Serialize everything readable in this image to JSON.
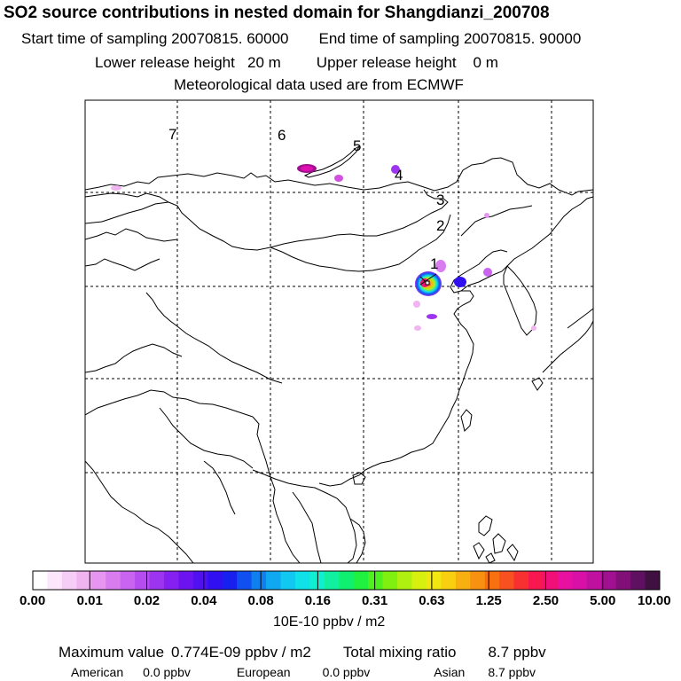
{
  "header": {
    "title": "SO2 source contributions in nested domain for Shangdianzi_200708",
    "start_label": "Start time of sampling 20070815. 60000",
    "end_label": "End time of sampling 20070815. 90000",
    "lower_label": "Lower release height   20 m",
    "upper_label": "Upper release height    0 m",
    "met_label": "Meteorological data used are from ECMWF"
  },
  "map": {
    "trajectory_labels": [
      "7",
      "6",
      "5",
      "4",
      "3",
      "2",
      "1"
    ],
    "colors": {
      "border": "#000000",
      "grid": "#000000"
    }
  },
  "colorbar": {
    "ticks": [
      "0.00",
      "0.01",
      "0.02",
      "0.04",
      "0.08",
      "0.16",
      "0.31",
      "0.63",
      "1.25",
      "2.50",
      "5.00",
      "10.00"
    ],
    "units": "10E-10 ppbv / m2",
    "colors": [
      "#ffffff",
      "#fbe6fb",
      "#f6cdf6",
      "#f0b4f0",
      "#e696f0",
      "#d87cf0",
      "#c864f0",
      "#b44cf0",
      "#9c34f0",
      "#8420f0",
      "#6c14f0",
      "#5010f0",
      "#3010f0",
      "#1820f0",
      "#1050f0",
      "#1080f0",
      "#10a8f0",
      "#10c8f0",
      "#10e0e8",
      "#10f0d0",
      "#10f0a0",
      "#10f070",
      "#20f040",
      "#50f020",
      "#80f010",
      "#b0f010",
      "#d8f010",
      "#f0e810",
      "#f8d010",
      "#f8b010",
      "#f89010",
      "#f87010",
      "#f85020",
      "#f83030",
      "#f81850",
      "#f01078",
      "#e810a0",
      "#d810a8",
      "#c010a0",
      "#a01090",
      "#801078",
      "#601060",
      "#401040"
    ]
  },
  "summary": {
    "max_label": "Maximum value",
    "max_value": "0.774E-09 ppbv / m2",
    "total_label": "Total mixing ratio",
    "total_value": "8.7 ppbv",
    "american_label": "American",
    "american_value": "0.0 ppbv",
    "european_label": "European",
    "european_value": "0.0 ppbv",
    "asian_label": "Asian",
    "asian_value": "8.7 ppbv"
  }
}
